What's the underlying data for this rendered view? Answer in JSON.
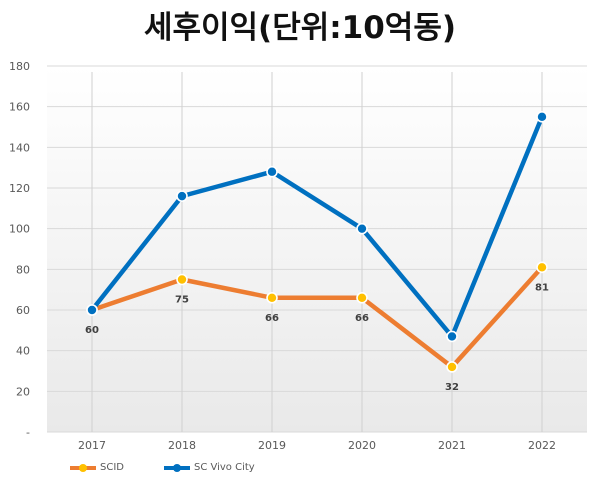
{
  "colors": {
    "scid": "#ED7D31",
    "scid_marker": "#FFC000",
    "vivo": "#0070C0",
    "vivo_marker": "#0070C0"
  },
  "chart_data": {
    "type": "line",
    "title": "세후이익(단위:10억동)",
    "categories": [
      "2017",
      "2018",
      "2019",
      "2020",
      "2021",
      "2022"
    ],
    "ylim": [
      0,
      180
    ],
    "yticks": [
      "-",
      "20",
      "40",
      "60",
      "80",
      "100",
      "120",
      "140",
      "160",
      "180"
    ],
    "grid": true,
    "legend_position": "bottom-left",
    "series": [
      {
        "name": "SCID",
        "values": [
          60,
          75,
          66,
          66,
          32,
          81
        ],
        "data_labels": [
          "60",
          "75",
          "66",
          "66",
          "32",
          "81"
        ]
      },
      {
        "name": "SC Vivo City",
        "values": [
          60,
          116,
          128,
          100,
          47,
          155
        ]
      }
    ]
  }
}
